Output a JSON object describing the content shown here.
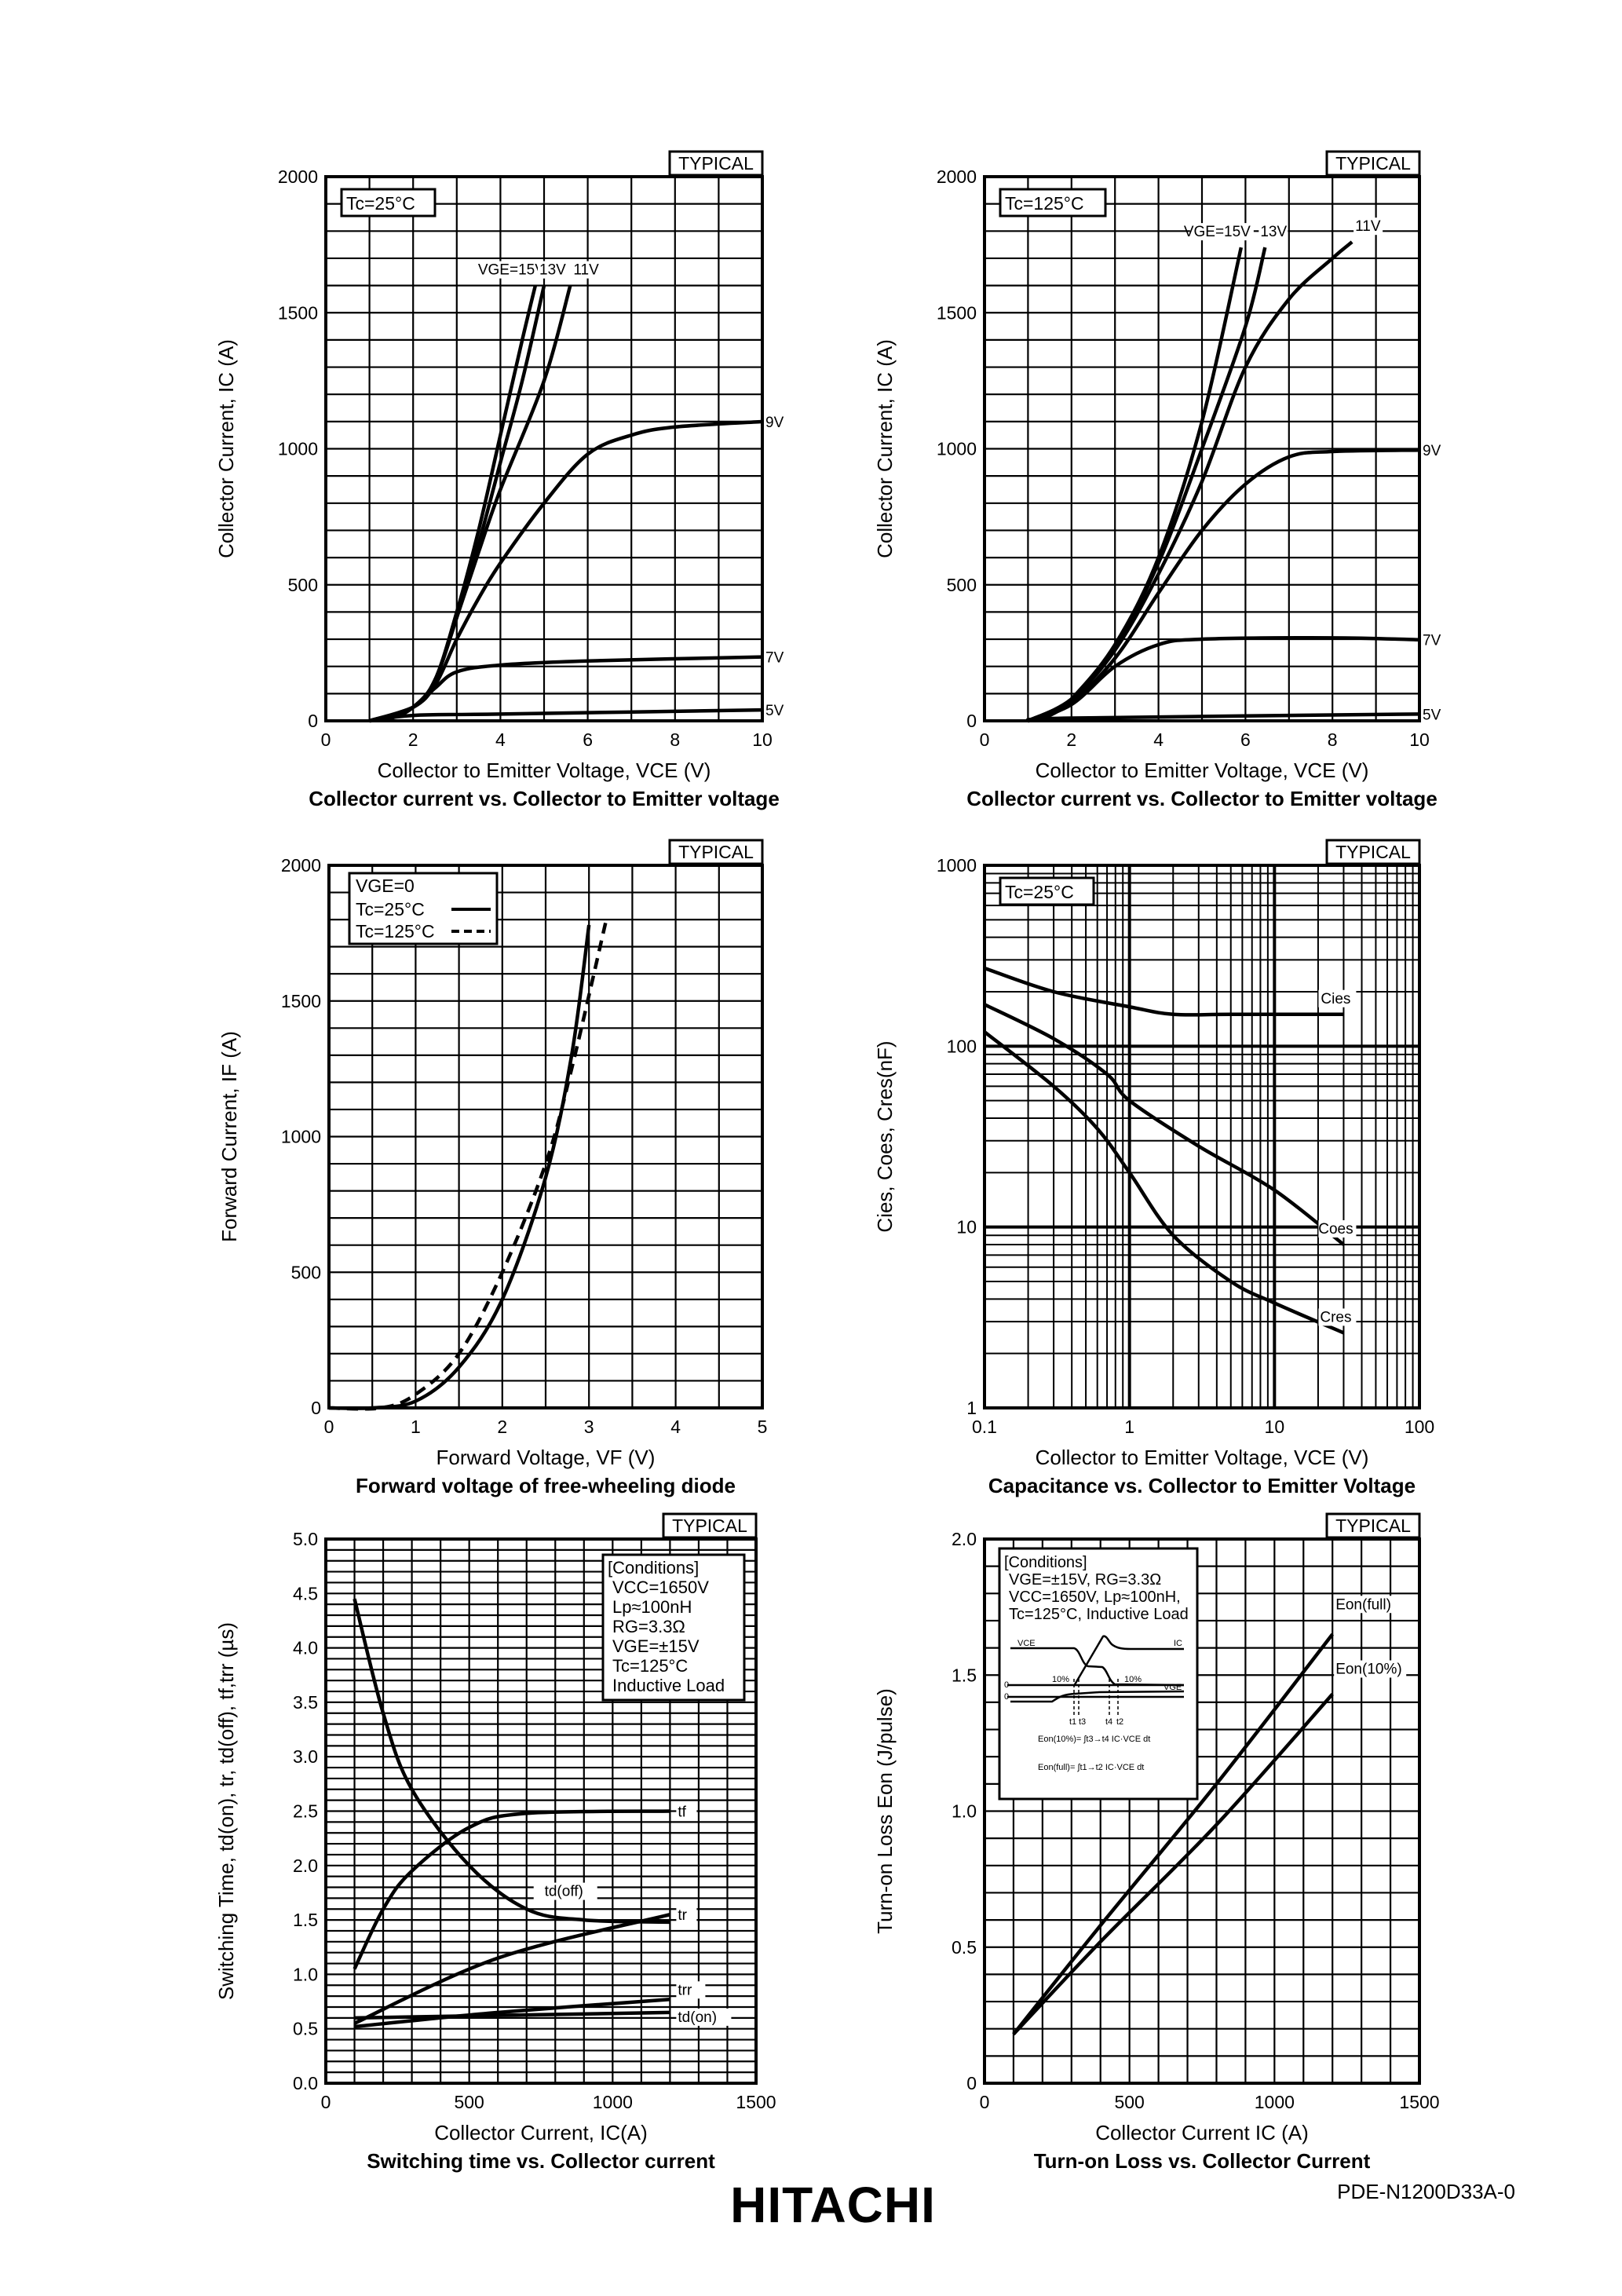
{
  "footer": {
    "logo": "HITACHI",
    "doc_number": "PDE-N1200D33A-0"
  },
  "chart_data": [
    {
      "type": "line",
      "title": "Collector current vs. Collector to Emitter voltage",
      "xlabel": "Collector to Emitter Voltage, VCE (V)",
      "ylabel": "Collector Current, IC (A)",
      "badge": "TYPICAL",
      "annotation": "Tc=25°C",
      "xscale": "linear",
      "yscale": "linear",
      "xlim": [
        0,
        10
      ],
      "ylim": [
        0,
        2000
      ],
      "grid": true,
      "xticks": [
        0,
        2,
        4,
        6,
        8,
        10
      ],
      "xtick_labels": [
        "0",
        "2",
        "4",
        "6",
        "8",
        "10"
      ],
      "yticks": [
        0,
        500,
        1000,
        1500,
        2000
      ],
      "ytick_labels": [
        "0",
        "500",
        "1000",
        "1500",
        "2000"
      ],
      "series": [
        {
          "name": "VGE=15V",
          "label": "VGE=15V",
          "x": [
            1,
            1.5,
            2,
            2.5,
            3,
            3.5,
            4,
            4.5,
            4.8
          ],
          "y": [
            0,
            10,
            50,
            150,
            400,
            700,
            1050,
            1400,
            1600
          ]
        },
        {
          "name": "13V",
          "label": "13V",
          "x": [
            1,
            2,
            2.5,
            3,
            3.5,
            4,
            4.5,
            5
          ],
          "y": [
            0,
            50,
            150,
            380,
            650,
            950,
            1250,
            1600
          ]
        },
        {
          "name": "11V",
          "label": "11V",
          "x": [
            1,
            2,
            2.5,
            3,
            3.5,
            4,
            5,
            5.6
          ],
          "y": [
            0,
            50,
            150,
            380,
            620,
            850,
            1250,
            1600
          ]
        },
        {
          "name": "9V",
          "label": "9V",
          "x": [
            1,
            2,
            2.5,
            3,
            3.5,
            4,
            5,
            6,
            7,
            8,
            10
          ],
          "y": [
            0,
            50,
            130,
            300,
            450,
            580,
            800,
            980,
            1050,
            1080,
            1100
          ]
        },
        {
          "name": "7V",
          "label": "7V",
          "x": [
            1,
            2,
            2.5,
            3,
            4,
            6,
            10
          ],
          "y": [
            0,
            50,
            120,
            180,
            205,
            220,
            235
          ]
        },
        {
          "name": "5V",
          "label": "5V",
          "x": [
            1,
            2,
            4,
            10
          ],
          "y": [
            0,
            20,
            25,
            40
          ]
        }
      ]
    },
    {
      "type": "line",
      "title": "Collector current vs. Collector to Emitter voltage",
      "xlabel": "Collector to Emitter Voltage, VCE (V)",
      "ylabel": "Collector Current, IC (A)",
      "badge": "TYPICAL",
      "annotation": "Tc=125°C",
      "xscale": "linear",
      "yscale": "linear",
      "xlim": [
        0,
        10
      ],
      "ylim": [
        0,
        2000
      ],
      "grid": true,
      "xticks": [
        0,
        2,
        4,
        6,
        8,
        10
      ],
      "xtick_labels": [
        "0",
        "2",
        "4",
        "6",
        "8",
        "10"
      ],
      "yticks": [
        0,
        500,
        1000,
        1500,
        2000
      ],
      "ytick_labels": [
        "0",
        "500",
        "1000",
        "1500",
        "2000"
      ],
      "series": [
        {
          "name": "VGE=15V",
          "label": "VGE=15V",
          "x": [
            1,
            1.5,
            2,
            3,
            4,
            5,
            5.9
          ],
          "y": [
            0,
            20,
            80,
            280,
            600,
            1100,
            1740
          ]
        },
        {
          "name": "13V",
          "label": "13V",
          "x": [
            1,
            2,
            3,
            4,
            5,
            6,
            6.45
          ],
          "y": [
            0,
            80,
            270,
            580,
            1000,
            1450,
            1740
          ]
        },
        {
          "name": "11V",
          "label": "11V",
          "x": [
            1,
            2,
            3,
            4,
            5,
            6,
            7,
            8,
            8.45
          ],
          "y": [
            0,
            80,
            260,
            540,
            880,
            1300,
            1550,
            1700,
            1760
          ]
        },
        {
          "name": "9V",
          "label": "9V",
          "x": [
            1,
            2,
            3,
            4,
            5,
            6,
            7,
            8,
            10
          ],
          "y": [
            0,
            70,
            230,
            470,
            700,
            870,
            970,
            990,
            995
          ]
        },
        {
          "name": "7V",
          "label": "7V",
          "x": [
            1,
            2,
            3,
            4,
            5,
            8,
            10
          ],
          "y": [
            0,
            60,
            200,
            280,
            300,
            305,
            298
          ]
        },
        {
          "name": "5V",
          "label": "5V",
          "x": [
            1,
            2,
            10
          ],
          "y": [
            0,
            10,
            25
          ]
        }
      ]
    },
    {
      "type": "line",
      "title": "Forward voltage of free-wheeling diode",
      "xlabel": "Forward Voltage, VF (V)",
      "ylabel": "Forward Current, IF (A)",
      "badge": "TYPICAL",
      "legend": {
        "title": "VGE=0",
        "position": "top-left"
      },
      "xscale": "linear",
      "yscale": "linear",
      "xlim": [
        0,
        5
      ],
      "ylim": [
        0,
        2000
      ],
      "grid": true,
      "xticks": [
        0,
        1,
        2,
        3,
        4,
        5
      ],
      "xtick_labels": [
        "0",
        "1",
        "2",
        "3",
        "4",
        "5"
      ],
      "yticks": [
        0,
        500,
        1000,
        1500,
        2000
      ],
      "ytick_labels": [
        "0",
        "500",
        "1000",
        "1500",
        "2000"
      ],
      "series": [
        {
          "name": "Tc=25°C",
          "style": "solid",
          "x": [
            0,
            0.5,
            1,
            1.5,
            2,
            2.5,
            2.8,
            3
          ],
          "y": [
            0,
            0,
            25,
            150,
            400,
            850,
            1300,
            1780
          ]
        },
        {
          "name": "Tc=125°C",
          "style": "dashed",
          "x": [
            0,
            0.6,
            1,
            1.5,
            2,
            2.5,
            2.8,
            3.2
          ],
          "y": [
            0,
            0,
            50,
            200,
            500,
            900,
            1250,
            1800
          ]
        }
      ]
    },
    {
      "type": "line",
      "title": "Capacitance vs. Collector to Emitter Voltage",
      "xlabel": "Collector to Emitter Voltage, VCE (V)",
      "ylabel": "Cies, Coes, Cres(nF)",
      "badge": "TYPICAL",
      "annotation": "Tc=25°C",
      "xscale": "log",
      "yscale": "log",
      "xlim": [
        0.1,
        100
      ],
      "ylim": [
        1,
        1000
      ],
      "grid": true,
      "xticks": [
        0.1,
        1,
        10,
        100
      ],
      "xtick_labels": [
        "0.1",
        "1",
        "10",
        "100"
      ],
      "yticks": [
        1,
        10,
        100,
        1000
      ],
      "ytick_labels": [
        "1",
        "10",
        "100",
        "1000"
      ],
      "series": [
        {
          "name": "Cies",
          "label": "Cies",
          "x": [
            0.1,
            0.3,
            1,
            2,
            5,
            30
          ],
          "y": [
            270,
            200,
            165,
            150,
            150,
            150
          ]
        },
        {
          "name": "Coes",
          "label": "Coes",
          "x": [
            0.1,
            0.3,
            0.7,
            1,
            3,
            10,
            30
          ],
          "y": [
            170,
            110,
            70,
            50,
            28,
            16,
            8
          ]
        },
        {
          "name": "Cres",
          "label": "Cres",
          "x": [
            0.1,
            0.3,
            0.6,
            1,
            2,
            5,
            10,
            30
          ],
          "y": [
            120,
            60,
            35,
            20,
            9,
            5,
            3.8,
            2.6
          ]
        }
      ]
    },
    {
      "type": "line",
      "title": "Switching time vs. Collector current",
      "xlabel": "Collector Current, IC(A)",
      "ylabel": "Switching Time, td(on), tr, td(off), tf,trr (µs)",
      "badge": "TYPICAL",
      "conditions": [
        "[Conditions]",
        "VCC=1650V",
        "Lp≈100nH",
        "RG=3.3Ω",
        "VGE=±15V",
        "Tc=125°C",
        "Inductive Load"
      ],
      "xscale": "linear",
      "yscale": "linear",
      "xlim": [
        0,
        1500
      ],
      "ylim": [
        0,
        5
      ],
      "grid": true,
      "xticks": [
        0,
        500,
        1000,
        1500
      ],
      "xtick_labels": [
        "0",
        "500",
        "1000",
        "1500"
      ],
      "yticks": [
        0,
        0.5,
        1,
        1.5,
        2,
        2.5,
        3,
        3.5,
        4,
        4.5,
        5
      ],
      "ytick_labels": [
        "0.0",
        "0.5",
        "1.0",
        "1.5",
        "2.0",
        "2.5",
        "3.0",
        "3.5",
        "4.0",
        "4.5",
        "5.0"
      ],
      "series": [
        {
          "name": "tf",
          "label": "tf",
          "x": [
            100,
            200,
            300,
            500,
            700,
            1200
          ],
          "y": [
            1.05,
            1.6,
            1.95,
            2.35,
            2.48,
            2.5
          ]
        },
        {
          "name": "td(off)",
          "label": "td(off)",
          "x": [
            100,
            200,
            300,
            500,
            700,
            900,
            1200
          ],
          "y": [
            4.45,
            3.4,
            2.7,
            2.0,
            1.6,
            1.5,
            1.48
          ]
        },
        {
          "name": "tr",
          "label": "tr",
          "x": [
            100,
            600,
            1200
          ],
          "y": [
            0.55,
            1.15,
            1.55
          ]
        },
        {
          "name": "trr",
          "label": "trr",
          "x": [
            100,
            600,
            1200
          ],
          "y": [
            0.52,
            0.65,
            0.77
          ]
        },
        {
          "name": "td(on)",
          "label": "td(on)",
          "x": [
            100,
            1200
          ],
          "y": [
            0.6,
            0.65
          ]
        }
      ]
    },
    {
      "type": "line",
      "title": "Turn-on Loss vs. Collector Current",
      "xlabel": "Collector Current IC (A)",
      "ylabel": "Turn-on Loss Eon (J/pulse)",
      "badge": "TYPICAL",
      "conditions": [
        "[Conditions]",
        "VGE=±15V, RG=3.3Ω",
        "VCC=1650V, Lp≈100nH,",
        "Tc=125°C, Inductive Load"
      ],
      "inset": {
        "vce": "VCE",
        "ic": "IC",
        "vge": "VGE",
        "pct1": "10%",
        "pct2": "10%",
        "zero1": "0",
        "zero2": "0",
        "t1": "t1",
        "t3": "t3",
        "t4": "t4",
        "t2": "t2",
        "eon10": "Eon(10%)= ∫t3→t4 IC·VCE dt",
        "eonfull": "Eon(full)= ∫t1→t2 IC·VCE dt"
      },
      "xscale": "linear",
      "yscale": "linear",
      "xlim": [
        0,
        1500
      ],
      "ylim": [
        0,
        2
      ],
      "grid": true,
      "xticks": [
        0,
        500,
        1000,
        1500
      ],
      "xtick_labels": [
        "0",
        "500",
        "1000",
        "1500"
      ],
      "yticks": [
        0,
        0.5,
        1,
        1.5,
        2
      ],
      "ytick_labels": [
        "0",
        "0.5",
        "1.0",
        "1.5",
        "2.0"
      ],
      "series": [
        {
          "name": "Eon(full)",
          "label": "Eon(full)",
          "x": [
            100,
            400,
            800,
            1200
          ],
          "y": [
            0.18,
            0.58,
            1.1,
            1.65
          ]
        },
        {
          "name": "Eon(10%)",
          "label": "Eon(10%)",
          "x": [
            100,
            400,
            800,
            1200
          ],
          "y": [
            0.18,
            0.52,
            0.95,
            1.43
          ]
        }
      ]
    }
  ]
}
